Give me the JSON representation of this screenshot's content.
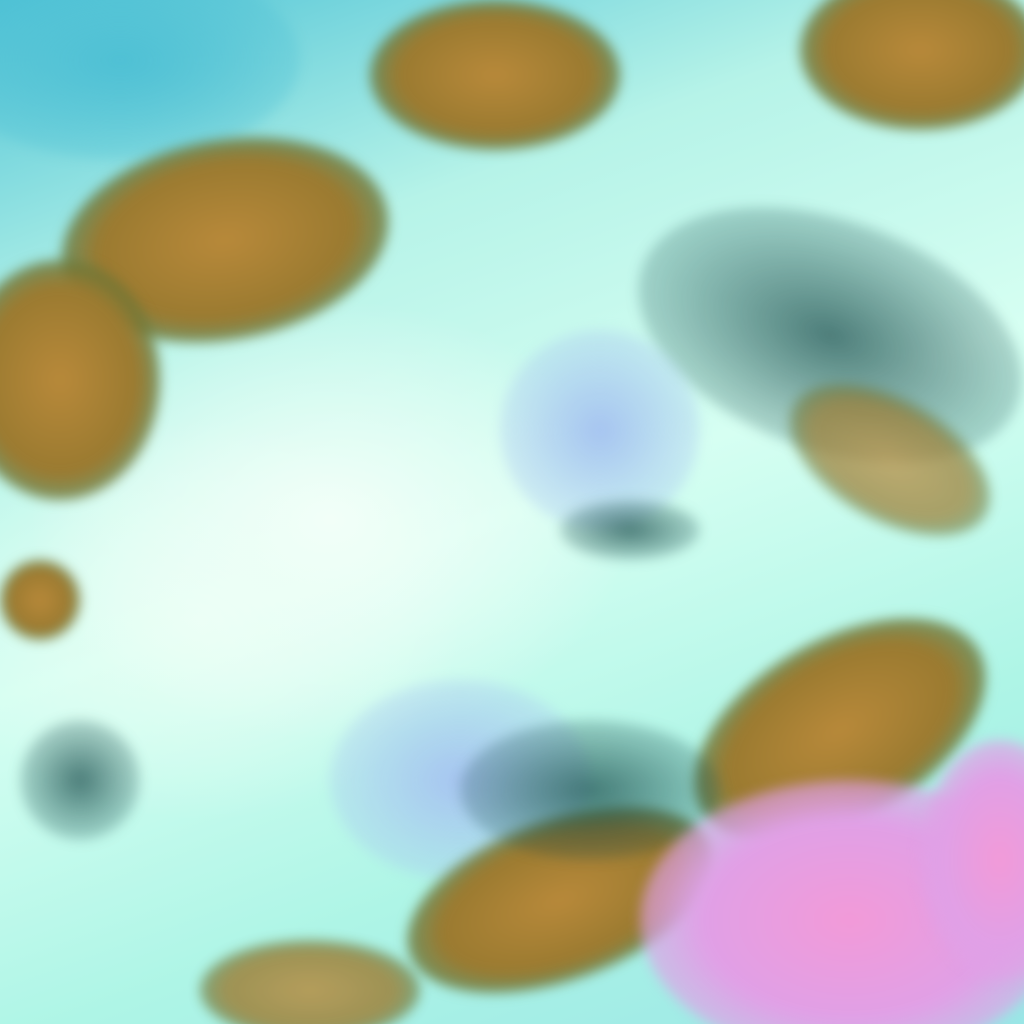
{
  "image": {
    "kind": "false-color satellite cloud imagery",
    "colors": {
      "clouds": "#d6fff2",
      "land": "#a8803a",
      "sea": "#4fc3d6",
      "high_cloud": "#f29ad8",
      "thin_cloud": "#a6c4f0"
    }
  }
}
